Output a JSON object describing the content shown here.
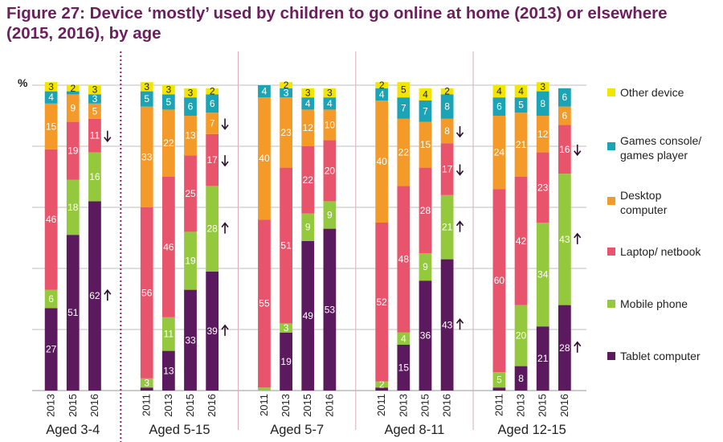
{
  "title": "Figure 27: Device ‘mostly’ used by children to go online at home (2013) or elsewhere (2015, 2016), by age",
  "chart_data": {
    "type": "bar",
    "stacked": true,
    "ylabel": "%",
    "ylim": [
      0,
      100
    ],
    "grid": true,
    "legend_position": "right",
    "series_order": [
      "Tablet computer",
      "Mobile phone",
      "Laptop/ netbook",
      "Desktop computer",
      "Games console/ games player",
      "Other device"
    ],
    "legend": [
      {
        "label": "Other device",
        "color": "#f4e500"
      },
      {
        "label": "Games console/ games player",
        "color": "#1ba3b6"
      },
      {
        "label": "Desktop computer",
        "color": "#f39a28"
      },
      {
        "label": "Laptop/ netbook",
        "color": "#e8546c"
      },
      {
        "label": "Mobile phone",
        "color": "#95c93d"
      },
      {
        "label": "Tablet computer",
        "color": "#5c1a5e"
      }
    ],
    "groups": [
      {
        "name": "Aged 3-4",
        "bars": [
          {
            "year": "2013",
            "values": [
              27,
              6,
              46,
              15,
              4,
              3
            ],
            "arrows": []
          },
          {
            "year": "2015",
            "values": [
              51,
              18,
              19,
              9,
              1,
              2
            ],
            "arrows": []
          },
          {
            "year": "2016",
            "values": [
              62,
              16,
              11,
              5,
              3,
              3
            ],
            "arrows": [
              {
                "series": 0,
                "dir": "up"
              },
              {
                "series": 2,
                "dir": "down"
              }
            ]
          }
        ]
      },
      {
        "name": "Aged 5-15",
        "bars": [
          {
            "year": "2011",
            "values": [
              1,
              3,
              56,
              33,
              5,
              3
            ],
            "arrows": []
          },
          {
            "year": "2013",
            "values": [
              13,
              11,
              46,
              22,
              5,
              3
            ],
            "arrows": []
          },
          {
            "year": "2015",
            "values": [
              33,
              19,
              25,
              13,
              6,
              3
            ],
            "arrows": []
          },
          {
            "year": "2016",
            "values": [
              39,
              28,
              17,
              7,
              6,
              2
            ],
            "arrows": [
              {
                "series": 0,
                "dir": "up"
              },
              {
                "series": 1,
                "dir": "up"
              },
              {
                "series": 2,
                "dir": "down"
              },
              {
                "series": 3,
                "dir": "down"
              }
            ]
          }
        ]
      },
      {
        "name": "Aged 5-7",
        "bars": [
          {
            "year": "2011",
            "values": [
              0,
              1,
              55,
              40,
              4,
              0
            ],
            "arrows": []
          },
          {
            "year": "2013",
            "values": [
              19,
              3,
              51,
              23,
              3,
              2
            ],
            "arrows": []
          },
          {
            "year": "2015",
            "values": [
              49,
              9,
              22,
              12,
              4,
              3
            ],
            "arrows": []
          },
          {
            "year": "2016",
            "values": [
              53,
              9,
              20,
              10,
              4,
              3
            ],
            "arrows": []
          }
        ]
      },
      {
        "name": "Aged 8-11",
        "bars": [
          {
            "year": "2011",
            "values": [
              1,
              2,
              52,
              40,
              4,
              2
            ],
            "arrows": []
          },
          {
            "year": "2013",
            "values": [
              15,
              4,
              48,
              22,
              7,
              5
            ],
            "arrows": []
          },
          {
            "year": "2015",
            "values": [
              36,
              9,
              28,
              15,
              7,
              4
            ],
            "arrows": []
          },
          {
            "year": "2016",
            "values": [
              43,
              21,
              17,
              8,
              8,
              2
            ],
            "arrows": [
              {
                "series": 0,
                "dir": "up"
              },
              {
                "series": 1,
                "dir": "up"
              },
              {
                "series": 2,
                "dir": "down"
              },
              {
                "series": 3,
                "dir": "down"
              }
            ]
          }
        ]
      },
      {
        "name": "Aged 12-15",
        "bars": [
          {
            "year": "2011",
            "values": [
              1,
              5,
              60,
              24,
              6,
              4
            ],
            "arrows": []
          },
          {
            "year": "2013",
            "values": [
              8,
              20,
              42,
              21,
              5,
              4
            ],
            "arrows": []
          },
          {
            "year": "2015",
            "values": [
              21,
              34,
              23,
              12,
              8,
              3
            ],
            "arrows": []
          },
          {
            "year": "2016",
            "values": [
              28,
              43,
              16,
              6,
              6,
              0
            ],
            "arrows": [
              {
                "series": 0,
                "dir": "up"
              },
              {
                "series": 1,
                "dir": "up"
              },
              {
                "series": 2,
                "dir": "down"
              }
            ]
          }
        ]
      }
    ]
  }
}
